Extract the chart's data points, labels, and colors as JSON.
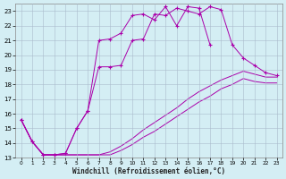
{
  "xlabel": "Windchill (Refroidissement éolien,°C)",
  "bg_color": "#d4eef4",
  "line_color": "#aa00aa",
  "grid_color": "#aabbcc",
  "xlim": [
    -0.5,
    23.5
  ],
  "ylim": [
    13,
    23.5
  ],
  "yticks": [
    13,
    14,
    15,
    16,
    17,
    18,
    19,
    20,
    21,
    22,
    23
  ],
  "xticks": [
    0,
    1,
    2,
    3,
    4,
    5,
    6,
    7,
    8,
    9,
    10,
    11,
    12,
    13,
    14,
    15,
    16,
    17,
    18,
    19,
    20,
    21,
    22,
    23
  ],
  "line1_x": [
    0,
    1,
    2,
    3,
    4,
    5,
    6,
    7,
    8,
    9,
    10,
    11,
    12,
    13,
    14,
    15,
    16,
    17,
    18,
    19,
    20,
    21,
    22,
    23
  ],
  "line1_y": [
    15.6,
    14.1,
    13.2,
    13.2,
    13.3,
    15.0,
    16.2,
    19.2,
    19.2,
    19.3,
    21.0,
    21.1,
    22.8,
    22.7,
    23.2,
    23.0,
    22.8,
    23.3,
    23.1,
    20.7,
    19.8,
    19.3,
    18.8,
    18.6
  ],
  "line2_x": [
    0,
    1,
    2,
    3,
    4,
    5,
    6,
    7,
    8,
    9,
    10,
    11,
    12,
    13,
    14,
    15,
    16,
    17
  ],
  "line2_y": [
    15.6,
    14.1,
    13.2,
    13.2,
    13.3,
    15.0,
    16.2,
    21.0,
    21.1,
    21.5,
    22.7,
    22.8,
    22.4,
    23.3,
    22.0,
    23.3,
    23.2,
    20.7
  ],
  "line3_x": [
    0,
    1,
    2,
    3,
    4,
    5,
    6,
    7,
    8,
    9,
    10,
    11,
    12,
    13,
    14,
    15,
    16,
    17,
    18,
    19,
    20,
    21,
    22,
    23
  ],
  "line3_y": [
    15.6,
    14.1,
    13.2,
    13.2,
    13.2,
    13.2,
    13.2,
    13.2,
    13.4,
    13.8,
    14.3,
    14.9,
    15.4,
    15.9,
    16.4,
    17.0,
    17.5,
    17.9,
    18.3,
    18.6,
    18.9,
    18.7,
    18.5,
    18.5
  ],
  "line4_x": [
    0,
    1,
    2,
    3,
    4,
    5,
    6,
    7,
    8,
    9,
    10,
    11,
    12,
    13,
    14,
    15,
    16,
    17,
    18,
    19,
    20,
    21,
    22,
    23
  ],
  "line4_y": [
    15.6,
    14.1,
    13.2,
    13.2,
    13.2,
    13.2,
    13.2,
    13.2,
    13.2,
    13.5,
    13.9,
    14.4,
    14.8,
    15.3,
    15.8,
    16.3,
    16.8,
    17.2,
    17.7,
    18.0,
    18.4,
    18.2,
    18.1,
    18.1
  ]
}
